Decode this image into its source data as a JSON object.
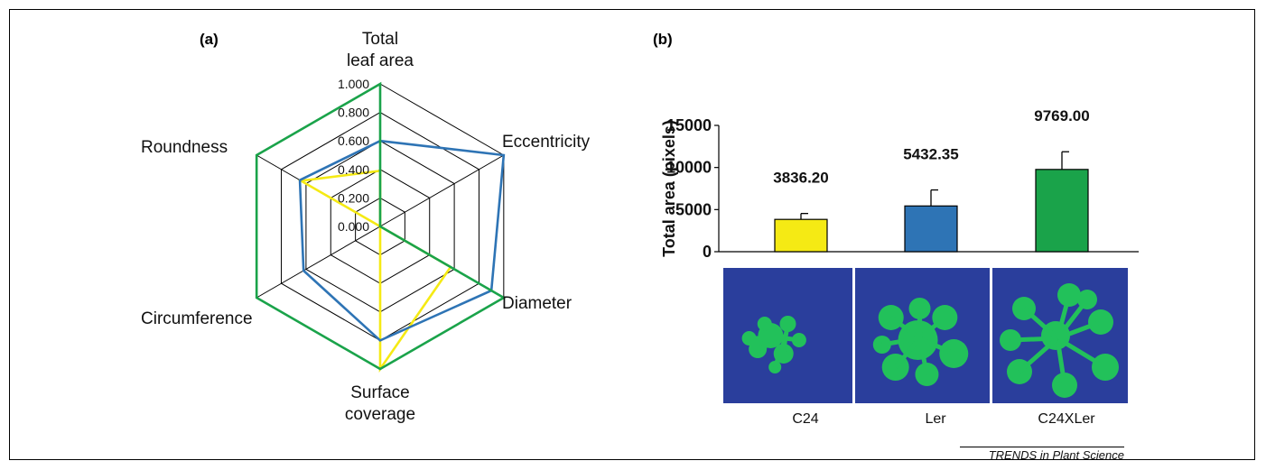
{
  "chart_data": [
    {
      "type": "radar",
      "panel_label": "(a)",
      "axes": [
        "Total leaf area",
        "Eccentricity",
        "Diameter",
        "Surface coverage",
        "Circumference",
        "Roundness"
      ],
      "axis_label_lines": [
        [
          "Total",
          "leaf area"
        ],
        [
          "Eccentricity"
        ],
        [
          "Diameter"
        ],
        [
          "Surface",
          "coverage"
        ],
        [
          "Circumference"
        ],
        [
          "Roundness"
        ]
      ],
      "radial_ticks": [
        "0.000",
        "0.200",
        "0.400",
        "0.600",
        "0.800",
        "1.000"
      ],
      "rlim": [
        0,
        1
      ],
      "grid": true,
      "series": [
        {
          "color": "#f5ea14",
          "values": [
            0.39,
            0.0,
            0.57,
            1.0,
            0.0,
            0.64
          ]
        },
        {
          "color": "#2e74b5",
          "values": [
            0.6,
            1.0,
            0.9,
            0.8,
            0.62,
            0.65
          ]
        },
        {
          "color": "#1aa34a",
          "values": [
            1.0,
            0.0,
            1.0,
            1.0,
            1.0,
            1.0
          ]
        }
      ]
    },
    {
      "type": "bar",
      "panel_label": "(b)",
      "categories": [
        "C24",
        "Ler",
        "C24XLer"
      ],
      "values": [
        3836.2,
        5432.35,
        9769.0
      ],
      "value_labels": [
        "3836.20",
        "5432.35",
        "9769.00"
      ],
      "errors": [
        700,
        1900,
        2100
      ],
      "colors": [
        "#f5ea14",
        "#2e74b5",
        "#1aa34a"
      ],
      "ylabel": "Total area (pixels)",
      "yticks": [
        "0",
        "5000",
        "10000",
        "15000"
      ],
      "ylim": [
        0,
        15000
      ]
    }
  ],
  "credit": "TRENDS in Plant Science"
}
